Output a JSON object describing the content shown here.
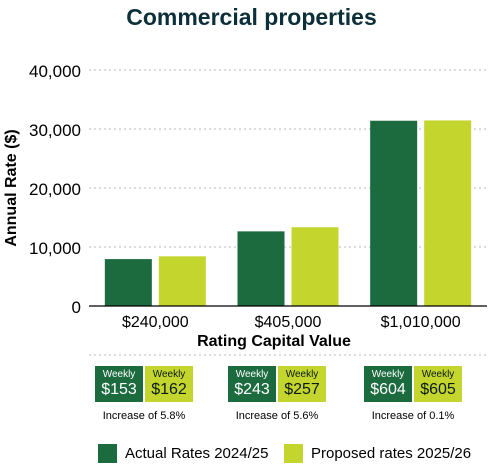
{
  "chart_data": {
    "type": "bar",
    "title": "Commercial properties",
    "xlabel": "Rating Capital Value",
    "ylabel": "Annual Rate ($)",
    "ylim": [
      0,
      40000
    ],
    "yticks": [
      0,
      10000,
      20000,
      30000,
      40000
    ],
    "ytick_labels": [
      "0",
      "10,000",
      "20,000",
      "30,000",
      "40,000"
    ],
    "categories": [
      "$240,000",
      "$405,000",
      "$1,010,000"
    ],
    "series": [
      {
        "name": "Actual Rates 2024/25",
        "color": "#1b6b3f",
        "values": [
          7950,
          12650,
          31400
        ]
      },
      {
        "name": "Proposed rates 2025/26",
        "color": "#c4d62e",
        "values": [
          8420,
          13350,
          31450
        ]
      }
    ],
    "grid": true
  },
  "weekly": [
    {
      "actual_label": "Weekly",
      "actual_value": "$153",
      "proposed_label": "Weekly",
      "proposed_value": "$162",
      "increase": "Increase of 5.8%"
    },
    {
      "actual_label": "Weekly",
      "actual_value": "$243",
      "proposed_label": "Weekly",
      "proposed_value": "$257",
      "increase": "Increase of 5.6%"
    },
    {
      "actual_label": "Weekly",
      "actual_value": "$604",
      "proposed_label": "Weekly",
      "proposed_value": "$605",
      "increase": "Increase of 0.1%"
    }
  ],
  "legend": [
    {
      "label": "Actual Rates 2024/25",
      "color": "#1b6b3f"
    },
    {
      "label": "Proposed rates 2025/26",
      "color": "#c4d62e"
    }
  ]
}
